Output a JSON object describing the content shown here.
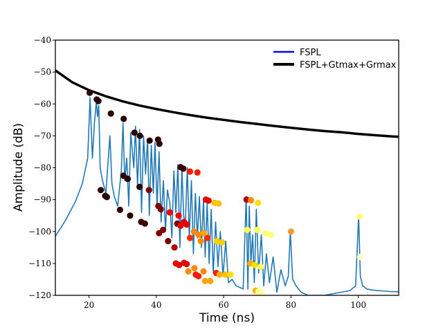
{
  "chart_data": {
    "type": "line",
    "title": "",
    "xlabel": "Time (ns)",
    "ylabel": "Amplitude (dB)",
    "xlim": [
      10,
      112
    ],
    "ylim": [
      -120,
      -40
    ],
    "xticks": [
      20,
      40,
      60,
      80,
      100
    ],
    "yticks": [
      -40,
      -50,
      -60,
      -70,
      -80,
      -90,
      -100,
      -110,
      -120
    ],
    "xtick_labels": [
      "20",
      "40",
      "60",
      "80",
      "100"
    ],
    "ytick_labels": [
      "−40",
      "−50",
      "−60",
      "−70",
      "−80",
      "−90",
      "−100",
      "−110",
      "−120"
    ],
    "grid": false,
    "legend_position": "top-right",
    "colors": {
      "signal": "#1f77b4",
      "fspl": "#0000ff",
      "fspl_gain": "#000000"
    },
    "legend": [
      {
        "label": "FSPL",
        "color": "#0000ff"
      },
      {
        "label": "FSPL+Gtmax+Grmax",
        "color": "#000000"
      }
    ],
    "fspl_gain_curve": {
      "x": [
        10,
        15,
        20,
        25,
        30,
        35,
        40,
        45,
        50,
        55,
        60,
        65,
        70,
        75,
        80,
        85,
        90,
        95,
        100,
        105,
        110,
        112
      ],
      "y": [
        -49.5,
        -53.2,
        -55.7,
        -57.6,
        -59.2,
        -60.5,
        -61.6,
        -62.6,
        -63.5,
        -64.3,
        -65.0,
        -65.7,
        -66.3,
        -66.9,
        -67.5,
        -68.0,
        -68.5,
        -68.9,
        -69.4,
        -69.8,
        -70.2,
        -70.3
      ]
    },
    "signal": {
      "x": [
        10,
        13,
        16,
        18,
        19.6,
        20.3,
        21,
        21.6,
        22.2,
        22.5,
        22.9,
        23.3,
        24,
        25,
        26.2,
        26.8,
        27.5,
        28.5,
        29.6,
        30.1,
        30.6,
        31.2,
        31.8,
        32.4,
        33.3,
        33.8,
        34.4,
        35,
        35.6,
        36.2,
        36.8,
        37.4,
        37.9,
        38.5,
        39.1,
        39.6,
        40.2,
        40.8,
        41.4,
        42.1,
        42.7,
        43.3,
        44,
        44.6,
        45.2,
        45.8,
        46.4,
        47,
        47.6,
        48.1,
        48.6,
        49.2,
        49.8,
        50.4,
        51,
        51.6,
        52.2,
        52.8,
        53.4,
        54,
        54.5,
        55.1,
        55.7,
        56.3,
        56.9,
        57.6,
        58.3,
        59,
        59.8,
        60.6,
        61.4,
        62.5,
        63.7,
        64.8,
        65.8,
        66.7,
        67.2,
        67.6,
        68.1,
        68.6,
        69.1,
        69.7,
        70.4,
        71.2,
        71.9,
        72.7,
        73.6,
        74.7,
        75.8,
        77,
        78.3,
        79.2,
        79.8,
        80.5,
        81.5,
        83,
        85,
        87.5,
        90,
        92.5,
        95,
        97.5,
        99.2,
        100.1,
        100.6,
        101.3,
        102.5,
        104.5,
        107,
        109.5,
        112
      ],
      "y": [
        -101.5,
        -96.5,
        -90.5,
        -85,
        -77,
        -58,
        -77,
        -66,
        -59,
        -64,
        -60.5,
        -80,
        -84,
        -88,
        -70,
        -85,
        -89,
        -92,
        -81,
        -66,
        -84,
        -77,
        -92,
        -69,
        -80,
        -67,
        -86,
        -68,
        -94,
        -70,
        -82,
        -71,
        -95,
        -73,
        -88,
        -72,
        -92,
        -75,
        -97,
        -84,
        -100,
        -87,
        -91,
        -102,
        -81,
        -94,
        -79,
        -105,
        -80,
        -95,
        -98,
        -80,
        -102,
        -84,
        -107,
        -88,
        -102,
        -89,
        -105,
        -90,
        -108,
        -91,
        -110,
        -93,
        -113,
        -97,
        -111,
        -100,
        -114,
        -103,
        -116,
        -115,
        -117,
        -117.5,
        -118,
        -89,
        -118,
        -92,
        -110,
        -101,
        -116,
        -93,
        -113,
        -101,
        -117,
        -107,
        -116,
        -108,
        -119,
        -112,
        -117,
        -114,
        -100,
        -115,
        -117,
        -119,
        -120,
        -120,
        -120,
        -119.5,
        -119,
        -118.5,
        -117,
        -95,
        -114,
        -117,
        -118,
        -118.4,
        -118.6,
        -118.8,
        -118.9
      ]
    },
    "points": [
      {
        "x": 20.2,
        "y": -56.5,
        "color": "#2a0000"
      },
      {
        "x": 22.3,
        "y": -58.6,
        "color": "#2a0000"
      },
      {
        "x": 22.8,
        "y": -59.1,
        "color": "#2a0000"
      },
      {
        "x": 26.5,
        "y": -63,
        "color": "#2a0000"
      },
      {
        "x": 30.3,
        "y": -64.7,
        "color": "#2a0000"
      },
      {
        "x": 33.5,
        "y": -69,
        "color": "#2a0000"
      },
      {
        "x": 35.1,
        "y": -70,
        "color": "#2a0000"
      },
      {
        "x": 38.0,
        "y": -71.5,
        "color": "#2a0000"
      },
      {
        "x": 40.5,
        "y": -71.2,
        "color": "#2a0000"
      },
      {
        "x": 40.9,
        "y": -72.5,
        "color": "#2a0000"
      },
      {
        "x": 47.2,
        "y": -79.8,
        "color": "#3a0000"
      },
      {
        "x": 48.0,
        "y": -80.3,
        "color": "#3a0000"
      },
      {
        "x": 50.0,
        "y": -81.2,
        "color": "#ff1a00"
      },
      {
        "x": 52.2,
        "y": -81.5,
        "color": "#ff1a00"
      },
      {
        "x": 23.5,
        "y": -87,
        "color": "#2a0000"
      },
      {
        "x": 24.8,
        "y": -88.8,
        "color": "#2a0000"
      },
      {
        "x": 25.3,
        "y": -89.2,
        "color": "#2a0000"
      },
      {
        "x": 30.2,
        "y": -82.5,
        "color": "#2a0000"
      },
      {
        "x": 31.5,
        "y": -83.5,
        "color": "#2a0000"
      },
      {
        "x": 35.0,
        "y": -86,
        "color": "#2a0000"
      },
      {
        "x": 37.8,
        "y": -87,
        "color": "#7a0000"
      },
      {
        "x": 29.2,
        "y": -93.2,
        "color": "#2a0000"
      },
      {
        "x": 32.2,
        "y": -95,
        "color": "#2a0000"
      },
      {
        "x": 35.5,
        "y": -97,
        "color": "#3a0000"
      },
      {
        "x": 36.6,
        "y": -97.5,
        "color": "#3a0000"
      },
      {
        "x": 40.6,
        "y": -92,
        "color": "#7a0000"
      },
      {
        "x": 41.3,
        "y": -93,
        "color": "#7a0000"
      },
      {
        "x": 40.8,
        "y": -100.5,
        "color": "#7a0000"
      },
      {
        "x": 42.0,
        "y": -99.5,
        "color": "#7a0000"
      },
      {
        "x": 43.5,
        "y": -103,
        "color": "#7a0000"
      },
      {
        "x": 44.0,
        "y": -94,
        "color": "#e60000"
      },
      {
        "x": 46.2,
        "y": -97.5,
        "color": "#7a0000"
      },
      {
        "x": 46.6,
        "y": -95,
        "color": "#e60000"
      },
      {
        "x": 47.2,
        "y": -98.2,
        "color": "#e60000"
      },
      {
        "x": 48.2,
        "y": -97,
        "color": "#e60000"
      },
      {
        "x": 49.0,
        "y": -97.8,
        "color": "#e60000"
      },
      {
        "x": 45.4,
        "y": -105,
        "color": "#b00000"
      },
      {
        "x": 50.0,
        "y": -102,
        "color": "#ff2a00"
      },
      {
        "x": 51.2,
        "y": -100,
        "color": "#ff8a00"
      },
      {
        "x": 52.5,
        "y": -101,
        "color": "#ff8a00"
      },
      {
        "x": 53.2,
        "y": -103,
        "color": "#ff8a00"
      },
      {
        "x": 54.1,
        "y": -100.5,
        "color": "#ffa500"
      },
      {
        "x": 55.2,
        "y": -102,
        "color": "#ff2a00"
      },
      {
        "x": 54.7,
        "y": -90,
        "color": "#e60000"
      },
      {
        "x": 55.5,
        "y": -90.3,
        "color": "#e60000"
      },
      {
        "x": 57.3,
        "y": -91,
        "color": "#ffc000"
      },
      {
        "x": 58.5,
        "y": -91.2,
        "color": "#ffc000"
      },
      {
        "x": 58.0,
        "y": -103,
        "color": "#ffd000"
      },
      {
        "x": 59.5,
        "y": -103.4,
        "color": "#ffd000"
      },
      {
        "x": 45.8,
        "y": -110,
        "color": "#e60000"
      },
      {
        "x": 46.8,
        "y": -110.5,
        "color": "#e60000"
      },
      {
        "x": 48.2,
        "y": -109.8,
        "color": "#e60000"
      },
      {
        "x": 49.0,
        "y": -110.2,
        "color": "#e60000"
      },
      {
        "x": 49.5,
        "y": -112.5,
        "color": "#ff8a00"
      },
      {
        "x": 51.3,
        "y": -111.5,
        "color": "#ff8a00"
      },
      {
        "x": 51.7,
        "y": -113.5,
        "color": "#ff1a00"
      },
      {
        "x": 52.5,
        "y": -114,
        "color": "#ff1a00"
      },
      {
        "x": 54.0,
        "y": -112.5,
        "color": "#ff8a00"
      },
      {
        "x": 54.5,
        "y": -115.5,
        "color": "#ffa500"
      },
      {
        "x": 56.0,
        "y": -115.5,
        "color": "#ffa500"
      },
      {
        "x": 57.8,
        "y": -113,
        "color": "#ff1a00"
      },
      {
        "x": 58.8,
        "y": -113.5,
        "color": "#ffb000"
      },
      {
        "x": 60.5,
        "y": -113.5,
        "color": "#ffc000"
      },
      {
        "x": 62.0,
        "y": -113.5,
        "color": "#ffe000"
      },
      {
        "x": 66.8,
        "y": -90,
        "color": "#b00000"
      },
      {
        "x": 68.1,
        "y": -90.2,
        "color": "#ff8a00"
      },
      {
        "x": 70.2,
        "y": -91,
        "color": "#ffe000"
      },
      {
        "x": 67.0,
        "y": -99.5,
        "color": "#ffff55"
      },
      {
        "x": 70.0,
        "y": -99.5,
        "color": "#ffff55"
      },
      {
        "x": 72.5,
        "y": -100.5,
        "color": "#ffff77"
      },
      {
        "x": 74.0,
        "y": -101,
        "color": "#ffff77"
      },
      {
        "x": 68.0,
        "y": -110,
        "color": "#ffb000"
      },
      {
        "x": 69.2,
        "y": -110.5,
        "color": "#ffe000"
      },
      {
        "x": 71.0,
        "y": -111,
        "color": "#ffff55"
      },
      {
        "x": 69.5,
        "y": -118.5,
        "color": "#ffb000"
      },
      {
        "x": 70.3,
        "y": -118.8,
        "color": "#ffff77"
      },
      {
        "x": 71.3,
        "y": -119,
        "color": "#ffffaa"
      },
      {
        "x": 80.0,
        "y": -100,
        "color": "#ff9a30"
      },
      {
        "x": 100.4,
        "y": -95.3,
        "color": "#ffff77"
      },
      {
        "x": 100.5,
        "y": -108,
        "color": "#ffffcc"
      }
    ]
  }
}
